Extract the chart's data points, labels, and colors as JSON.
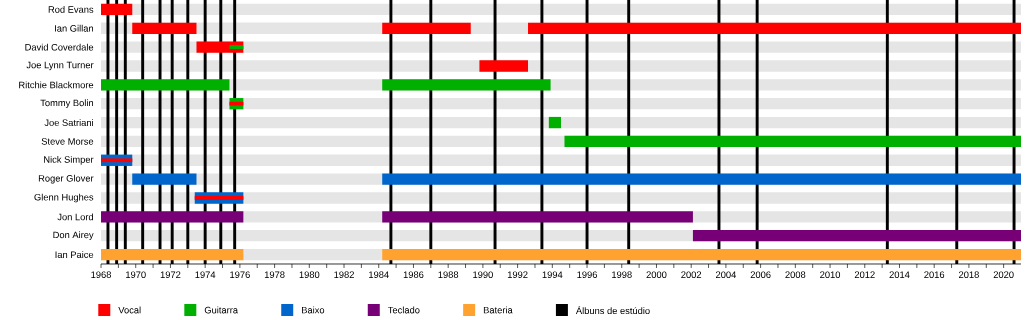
{
  "chart_data": {
    "type": "bar",
    "orientation": "horizontal",
    "grid": "y",
    "legend": "bottom",
    "categories": [
      "Rod Evans",
      "Ian Gillan",
      "David Coverdale",
      "Joe Lynn Turner",
      "Ritchie Blackmore",
      "Tommy Bolin",
      "Joe Satriani",
      "Steve Morse",
      "Nick Simper",
      "Roger Glover",
      "Glenn Hughes",
      "Jon Lord",
      "Don Airey",
      "Ian Paice"
    ],
    "xlim": [
      1968,
      2021
    ],
    "xticks": [
      1968,
      {
        "value": 1969,
        "label": null
      },
      1970,
      {
        "value": 1971,
        "label": null
      },
      1972,
      {
        "value": 1973,
        "label": null
      },
      1974,
      {
        "value": 1975,
        "label": null
      },
      1976,
      {
        "value": 1977,
        "label": null
      },
      1978,
      {
        "value": 1979,
        "label": null
      },
      1980,
      {
        "value": 1981,
        "label": null
      },
      1982,
      {
        "value": 1983,
        "label": null
      },
      1984,
      {
        "value": 1985,
        "label": null
      },
      1986,
      {
        "value": 1987,
        "label": null
      },
      1988,
      {
        "value": 1989,
        "label": null
      },
      1990,
      {
        "value": 1991,
        "label": null
      },
      1992,
      {
        "value": 1993,
        "label": null
      },
      1994,
      {
        "value": 1995,
        "label": null
      },
      1996,
      {
        "value": 1997,
        "label": null
      },
      1998,
      {
        "value": 1999,
        "label": null
      },
      2000,
      {
        "value": 2001,
        "label": null
      },
      2002,
      {
        "value": 2003,
        "label": null
      },
      2004,
      {
        "value": 2005,
        "label": null
      },
      2006,
      {
        "value": 2007,
        "label": null
      },
      2008,
      {
        "value": 2009,
        "label": null
      },
      2010,
      {
        "value": 2011,
        "label": null
      },
      2012,
      {
        "value": 2013,
        "label": null
      },
      2014,
      {
        "value": 2015,
        "label": null
      },
      2016,
      {
        "value": 2017,
        "label": null
      },
      2018,
      {
        "value": 2019,
        "label": null
      },
      2020
    ],
    "series": [
      {
        "name": "Vocal",
        "color": "#ff0000",
        "base": [
          1968,
          1969.8,
          1973.5,
          1989.8,
          null,
          null,
          null,
          null,
          null,
          null,
          null,
          null,
          null,
          null
        ],
        "values": [
          1.8,
          3.7,
          2.7,
          2.8,
          null,
          null,
          null,
          null,
          null,
          null,
          null,
          null,
          null,
          null
        ]
      },
      {
        "name": "Guitarra",
        "color": "#00b000",
        "base": [
          null,
          null,
          null,
          null,
          1968,
          1975.4,
          1993.8,
          1994.7,
          null,
          null,
          null,
          null,
          null,
          null
        ],
        "values": [
          null,
          null,
          null,
          null,
          7.4,
          0.8,
          0.7,
          26.3,
          null,
          null,
          null,
          null,
          null,
          null
        ]
      },
      {
        "name": "Baixo",
        "color": "#0066cc",
        "base": [
          null,
          null,
          null,
          null,
          null,
          null,
          null,
          null,
          1968,
          1969.8,
          1973.4,
          null,
          null,
          null
        ],
        "values": [
          null,
          null,
          null,
          null,
          null,
          null,
          null,
          null,
          1.8,
          3.7,
          2.8,
          null,
          null,
          null
        ]
      },
      {
        "name": "Teclado",
        "color": "#770077",
        "base": [
          null,
          null,
          null,
          null,
          null,
          null,
          null,
          null,
          null,
          null,
          null,
          1968,
          2002.1,
          null
        ],
        "values": [
          null,
          null,
          null,
          null,
          null,
          null,
          null,
          null,
          null,
          null,
          null,
          8.2,
          18.9,
          null
        ]
      },
      {
        "name": "Bateria",
        "color": "#ffa230",
        "base": [
          null,
          null,
          null,
          null,
          null,
          null,
          null,
          null,
          null,
          null,
          null,
          null,
          null,
          1968
        ],
        "values": [
          null,
          null,
          null,
          null,
          null,
          null,
          null,
          null,
          null,
          null,
          null,
          null,
          null,
          8.2
        ]
      },
      {
        "color": "#ff0000",
        "base": [
          null,
          1984.2,
          null,
          null,
          null,
          null,
          null,
          null,
          null,
          null,
          null,
          null,
          null,
          null
        ],
        "values": [
          null,
          5.1,
          null,
          null,
          null,
          null,
          null,
          null,
          null,
          null,
          null,
          null,
          null,
          null
        ]
      },
      {
        "color": "#ff0000",
        "base": [
          null,
          1992.6,
          null,
          null,
          null,
          null,
          null,
          null,
          null,
          null,
          null,
          null,
          null,
          null
        ],
        "values": [
          null,
          28.4,
          null,
          null,
          null,
          null,
          null,
          null,
          null,
          null,
          null,
          null,
          null,
          null
        ]
      },
      {
        "color": "#00b000",
        "base": [
          null,
          null,
          null,
          null,
          1984.2,
          null,
          null,
          null,
          null,
          null,
          null,
          null,
          null,
          null
        ],
        "values": [
          null,
          null,
          null,
          null,
          9.7,
          null,
          null,
          null,
          null,
          null,
          null,
          null,
          null,
          null
        ]
      },
      {
        "color": "#0066cc",
        "base": [
          null,
          null,
          null,
          null,
          null,
          null,
          null,
          null,
          null,
          1984.2,
          null,
          null,
          null,
          null
        ],
        "values": [
          null,
          null,
          null,
          null,
          null,
          null,
          null,
          null,
          null,
          36.8,
          null,
          null,
          null,
          null
        ]
      },
      {
        "color": "#770077",
        "base": [
          null,
          null,
          null,
          null,
          null,
          null,
          null,
          null,
          null,
          null,
          null,
          1984.2,
          null,
          null
        ],
        "values": [
          null,
          null,
          null,
          null,
          null,
          null,
          null,
          null,
          null,
          null,
          null,
          17.9,
          null,
          null
        ]
      },
      {
        "color": "#ffa230",
        "base": [
          null,
          null,
          null,
          null,
          null,
          null,
          null,
          null,
          null,
          null,
          null,
          null,
          null,
          1984.2
        ],
        "values": [
          null,
          null,
          null,
          null,
          null,
          null,
          null,
          null,
          null,
          null,
          null,
          null,
          null,
          36.8
        ]
      },
      {
        "color": "#ff0000",
        "base": [
          null,
          null,
          null,
          null,
          null,
          1975.4,
          null,
          null,
          1968,
          null,
          1973.4,
          null,
          null,
          null
        ],
        "values": [
          null,
          null,
          null,
          null,
          null,
          0.8,
          null,
          null,
          1.8,
          null,
          2.8,
          null,
          null,
          null
        ]
      },
      {
        "color": "#00b000",
        "base": [
          null,
          null,
          1975.4,
          null,
          null,
          null,
          null,
          null,
          null,
          null,
          null,
          null,
          null,
          null
        ],
        "values": [
          null,
          null,
          0.8,
          null,
          null,
          null,
          null,
          null,
          null,
          null,
          null,
          null,
          null,
          null
        ]
      }
    ],
    "ref_lines": [
      {
        "axis": "x",
        "value": 1968.4,
        "color": "#000000"
      },
      {
        "axis": "x",
        "value": 1968.9,
        "color": "#000000"
      },
      {
        "axis": "x",
        "value": 1969.4,
        "color": "#000000"
      },
      {
        "axis": "x",
        "value": 1970.4,
        "color": "#000000"
      },
      {
        "axis": "x",
        "value": 1971.4,
        "color": "#000000"
      },
      {
        "axis": "x",
        "value": 1972.1,
        "color": "#000000"
      },
      {
        "axis": "x",
        "value": 1973.0,
        "color": "#000000"
      },
      {
        "axis": "x",
        "value": 1974.0,
        "color": "#000000"
      },
      {
        "axis": "x",
        "value": 1974.9,
        "color": "#000000"
      },
      {
        "axis": "x",
        "value": 1975.7,
        "color": "#000000"
      },
      {
        "axis": "x",
        "value": 1984.7,
        "color": "#000000"
      },
      {
        "axis": "x",
        "value": 1987.0,
        "color": "#000000"
      },
      {
        "axis": "x",
        "value": 1990.7,
        "color": "#000000"
      },
      {
        "axis": "x",
        "value": 1993.4,
        "color": "#000000"
      },
      {
        "axis": "x",
        "value": 1996.0,
        "color": "#000000"
      },
      {
        "axis": "x",
        "value": 1998.4,
        "color": "#000000"
      },
      {
        "axis": "x",
        "value": 2003.6,
        "color": "#000000"
      },
      {
        "axis": "x",
        "value": 2005.8,
        "color": "#000000"
      },
      {
        "axis": "x",
        "value": 2013.3,
        "color": "#000000"
      },
      {
        "axis": "x",
        "value": 2017.3,
        "color": "#000000"
      },
      {
        "axis": "x",
        "value": 2020.6,
        "color": "#000000"
      }
    ],
    "annotations": [
      "Álbuns de estúdio"
    ]
  }
}
